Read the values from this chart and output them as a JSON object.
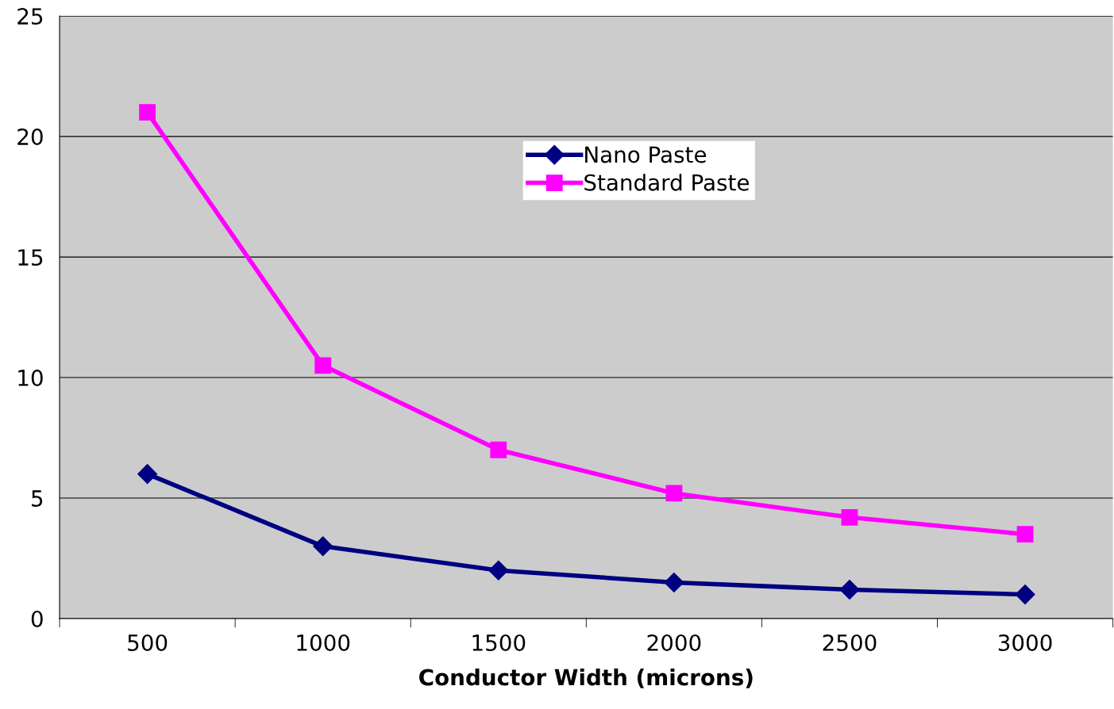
{
  "chart_data": {
    "type": "line",
    "xlabel": "Conductor Width (microns)",
    "categories": [
      "500",
      "1000",
      "1500",
      "2000",
      "2500",
      "3000"
    ],
    "series": [
      {
        "name": "Nano Paste",
        "color": "#000080",
        "marker": "diamond",
        "values": [
          6,
          3,
          2,
          1.5,
          1.2,
          1
        ]
      },
      {
        "name": "Standard Paste",
        "color": "#ff00ff",
        "marker": "square",
        "values": [
          21,
          10.5,
          7,
          5.2,
          4.2,
          3.5
        ]
      }
    ],
    "ylim": [
      0,
      25
    ],
    "yticks": [
      0,
      5,
      10,
      15,
      20,
      25
    ],
    "grid": "y",
    "legend": "top",
    "line_style": "solid"
  }
}
